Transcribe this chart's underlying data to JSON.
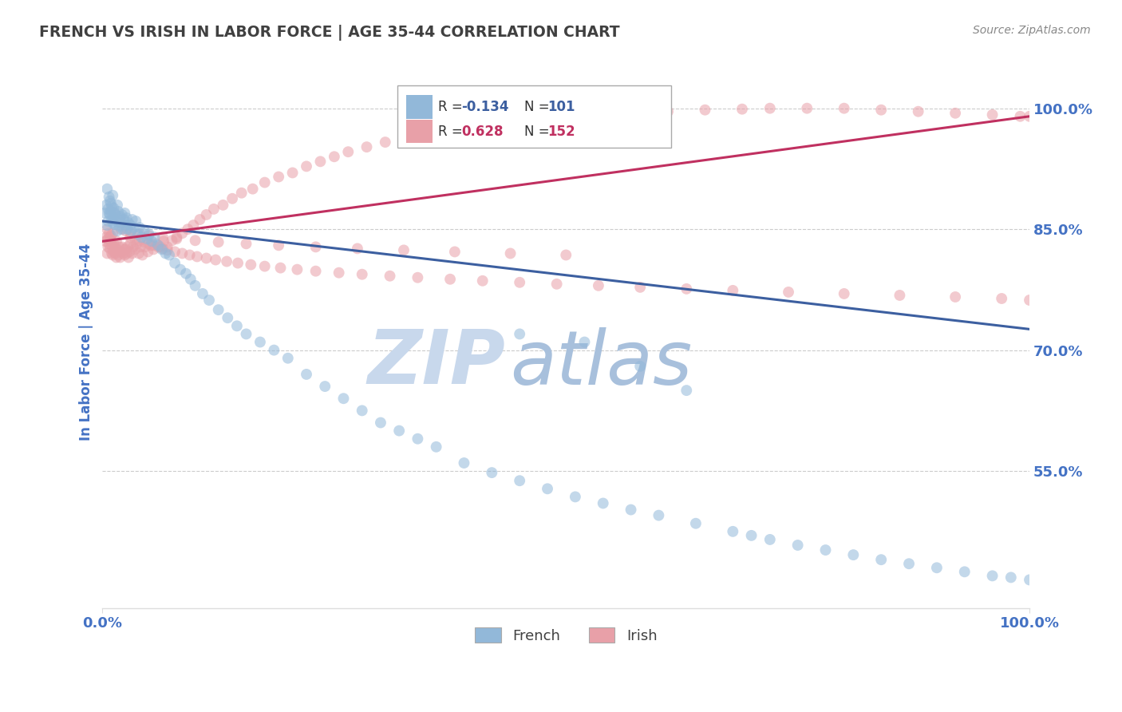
{
  "title": "FRENCH VS IRISH IN LABOR FORCE | AGE 35-44 CORRELATION CHART",
  "source_text": "Source: ZipAtlas.com",
  "ylabel": "In Labor Force | Age 35-44",
  "xlim": [
    0.0,
    1.0
  ],
  "ylim": [
    0.38,
    1.04
  ],
  "yticks": [
    0.55,
    0.7,
    0.85,
    1.0
  ],
  "ytick_labels": [
    "55.0%",
    "70.0%",
    "85.0%",
    "100.0%"
  ],
  "xticks": [
    0.0,
    1.0
  ],
  "xtick_labels": [
    "0.0%",
    "100.0%"
  ],
  "french_R": -0.134,
  "french_N": 101,
  "irish_R": 0.628,
  "irish_N": 152,
  "french_color": "#92b8d9",
  "irish_color": "#e8a0a8",
  "french_line_color": "#3c5fa0",
  "irish_line_color": "#c03060",
  "title_color": "#404040",
  "label_color": "#4472c4",
  "watermark_zip_color": "#c8d8ec",
  "watermark_atlas_color": "#a8c0dc",
  "background_color": "#ffffff",
  "grid_color": "#cccccc",
  "legend_border_color": "#aaaaaa",
  "french_trend_y0": 0.86,
  "french_trend_y1": 0.726,
  "irish_trend_y0": 0.835,
  "irish_trend_y1": 0.99,
  "marker_size": 100,
  "marker_alpha": 0.55,
  "french_x": [
    0.003,
    0.004,
    0.005,
    0.005,
    0.006,
    0.006,
    0.007,
    0.007,
    0.008,
    0.008,
    0.009,
    0.009,
    0.01,
    0.01,
    0.011,
    0.011,
    0.012,
    0.012,
    0.013,
    0.013,
    0.014,
    0.015,
    0.016,
    0.016,
    0.017,
    0.018,
    0.019,
    0.02,
    0.021,
    0.022,
    0.023,
    0.024,
    0.025,
    0.026,
    0.027,
    0.028,
    0.03,
    0.031,
    0.032,
    0.034,
    0.036,
    0.038,
    0.04,
    0.042,
    0.045,
    0.048,
    0.05,
    0.053,
    0.056,
    0.06,
    0.064,
    0.068,
    0.072,
    0.078,
    0.084,
    0.09,
    0.095,
    0.1,
    0.108,
    0.115,
    0.125,
    0.135,
    0.145,
    0.155,
    0.17,
    0.185,
    0.2,
    0.22,
    0.24,
    0.26,
    0.28,
    0.3,
    0.32,
    0.34,
    0.36,
    0.39,
    0.42,
    0.45,
    0.48,
    0.51,
    0.54,
    0.57,
    0.6,
    0.64,
    0.68,
    0.7,
    0.72,
    0.75,
    0.78,
    0.81,
    0.84,
    0.87,
    0.9,
    0.93,
    0.96,
    0.98,
    1.0,
    0.45,
    0.52,
    0.58,
    0.63
  ],
  "french_y": [
    0.87,
    0.88,
    0.9,
    0.855,
    0.875,
    0.86,
    0.89,
    0.87,
    0.885,
    0.868,
    0.872,
    0.882,
    0.878,
    0.862,
    0.892,
    0.858,
    0.876,
    0.864,
    0.87,
    0.856,
    0.868,
    0.86,
    0.88,
    0.848,
    0.872,
    0.854,
    0.866,
    0.858,
    0.868,
    0.85,
    0.862,
    0.87,
    0.855,
    0.864,
    0.85,
    0.858,
    0.855,
    0.848,
    0.862,
    0.852,
    0.86,
    0.844,
    0.852,
    0.84,
    0.848,
    0.838,
    0.844,
    0.835,
    0.84,
    0.83,
    0.825,
    0.82,
    0.818,
    0.808,
    0.8,
    0.795,
    0.788,
    0.78,
    0.77,
    0.762,
    0.75,
    0.74,
    0.73,
    0.72,
    0.71,
    0.7,
    0.69,
    0.67,
    0.655,
    0.64,
    0.625,
    0.61,
    0.6,
    0.59,
    0.58,
    0.56,
    0.548,
    0.538,
    0.528,
    0.518,
    0.51,
    0.502,
    0.495,
    0.485,
    0.475,
    0.47,
    0.465,
    0.458,
    0.452,
    0.446,
    0.44,
    0.435,
    0.43,
    0.425,
    0.42,
    0.418,
    0.415,
    0.72,
    0.71,
    0.68,
    0.65
  ],
  "irish_x": [
    0.003,
    0.004,
    0.005,
    0.005,
    0.006,
    0.006,
    0.007,
    0.007,
    0.008,
    0.008,
    0.009,
    0.009,
    0.01,
    0.01,
    0.011,
    0.011,
    0.012,
    0.012,
    0.013,
    0.014,
    0.015,
    0.015,
    0.016,
    0.017,
    0.018,
    0.019,
    0.02,
    0.021,
    0.022,
    0.023,
    0.024,
    0.025,
    0.026,
    0.027,
    0.028,
    0.029,
    0.03,
    0.032,
    0.033,
    0.035,
    0.037,
    0.039,
    0.041,
    0.043,
    0.046,
    0.049,
    0.052,
    0.055,
    0.058,
    0.062,
    0.066,
    0.07,
    0.075,
    0.08,
    0.086,
    0.092,
    0.098,
    0.105,
    0.112,
    0.12,
    0.13,
    0.14,
    0.15,
    0.162,
    0.175,
    0.19,
    0.205,
    0.22,
    0.235,
    0.25,
    0.265,
    0.285,
    0.305,
    0.325,
    0.345,
    0.37,
    0.395,
    0.42,
    0.45,
    0.48,
    0.51,
    0.54,
    0.57,
    0.61,
    0.65,
    0.69,
    0.72,
    0.76,
    0.8,
    0.84,
    0.88,
    0.92,
    0.96,
    0.99,
    1.0,
    0.03,
    0.035,
    0.04,
    0.045,
    0.05,
    0.055,
    0.06,
    0.065,
    0.07,
    0.078,
    0.086,
    0.094,
    0.102,
    0.112,
    0.122,
    0.134,
    0.146,
    0.16,
    0.175,
    0.192,
    0.21,
    0.23,
    0.255,
    0.28,
    0.31,
    0.34,
    0.375,
    0.41,
    0.45,
    0.49,
    0.535,
    0.58,
    0.63,
    0.68,
    0.74,
    0.8,
    0.86,
    0.92,
    0.97,
    1.0,
    0.02,
    0.025,
    0.03,
    0.04,
    0.05,
    0.065,
    0.08,
    0.1,
    0.125,
    0.155,
    0.19,
    0.23,
    0.275,
    0.325,
    0.38,
    0.44,
    0.5
  ],
  "irish_y": [
    0.835,
    0.84,
    0.85,
    0.82,
    0.838,
    0.828,
    0.845,
    0.832,
    0.84,
    0.826,
    0.835,
    0.842,
    0.83,
    0.82,
    0.845,
    0.818,
    0.832,
    0.822,
    0.828,
    0.82,
    0.835,
    0.815,
    0.825,
    0.818,
    0.828,
    0.815,
    0.822,
    0.828,
    0.82,
    0.825,
    0.818,
    0.825,
    0.82,
    0.828,
    0.815,
    0.822,
    0.832,
    0.82,
    0.828,
    0.825,
    0.832,
    0.82,
    0.828,
    0.818,
    0.828,
    0.822,
    0.83,
    0.825,
    0.832,
    0.828,
    0.835,
    0.828,
    0.836,
    0.84,
    0.845,
    0.85,
    0.855,
    0.862,
    0.868,
    0.875,
    0.88,
    0.888,
    0.895,
    0.9,
    0.908,
    0.915,
    0.92,
    0.928,
    0.934,
    0.94,
    0.946,
    0.952,
    0.958,
    0.962,
    0.968,
    0.972,
    0.976,
    0.98,
    0.984,
    0.988,
    0.99,
    0.992,
    0.994,
    0.996,
    0.998,
    0.999,
    1.0,
    1.0,
    1.0,
    0.998,
    0.996,
    0.994,
    0.992,
    0.99,
    0.99,
    0.84,
    0.838,
    0.836,
    0.834,
    0.832,
    0.83,
    0.828,
    0.826,
    0.824,
    0.822,
    0.82,
    0.818,
    0.816,
    0.814,
    0.812,
    0.81,
    0.808,
    0.806,
    0.804,
    0.802,
    0.8,
    0.798,
    0.796,
    0.794,
    0.792,
    0.79,
    0.788,
    0.786,
    0.784,
    0.782,
    0.78,
    0.778,
    0.776,
    0.774,
    0.772,
    0.77,
    0.768,
    0.766,
    0.764,
    0.762,
    0.85,
    0.848,
    0.846,
    0.844,
    0.842,
    0.84,
    0.838,
    0.836,
    0.834,
    0.832,
    0.83,
    0.828,
    0.826,
    0.824,
    0.822,
    0.82,
    0.818
  ]
}
